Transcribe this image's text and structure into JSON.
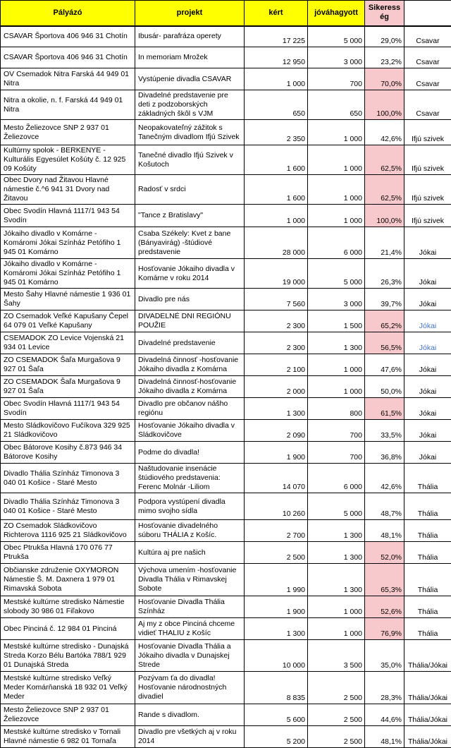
{
  "colors": {
    "header_fill": "#FFFF00",
    "highlight_fill": "#F8C9CC",
    "blue_group_text": "#4472C4",
    "grid": "#000000"
  },
  "table": {
    "headers": {
      "applicant": "Pályázó",
      "project": "projekt",
      "requested": "kért",
      "approved": "jóváhagyott",
      "success": "Sikeresség",
      "group": ""
    },
    "rows": [
      {
        "applicant": "CSAVAR Športova 406 946 31 Chotín",
        "project": "Ibusár- parafráza operety",
        "requested": "17 225",
        "approved": "5 000",
        "success": "29,0%",
        "group": "Csavar",
        "success_highlight": false,
        "group_blue": false
      },
      {
        "applicant": "CSAVAR Športova 406 946 31 Chotín",
        "project": "In memoriam Mrožek",
        "requested": "12 950",
        "approved": "3 000",
        "success": "23,2%",
        "group": "Csavar",
        "success_highlight": false,
        "group_blue": false
      },
      {
        "applicant": "OV Csemadok Nitra Farská 44 949 01 Nitra",
        "project": "Vystúpenie divadla CSAVAR",
        "requested": "1 000",
        "approved": "700",
        "success": "70,0%",
        "group": "Csavar",
        "success_highlight": true,
        "group_blue": false
      },
      {
        "applicant": "Nitra a okolie, n. f. Farská 44 949 01 Nitra",
        "project": "Divadelné predstavenie pre deti z podzoborských základných škôl s VJM",
        "requested": "650",
        "approved": "650",
        "success": "100,0%",
        "group": "Csavar",
        "success_highlight": true,
        "group_blue": false
      },
      {
        "applicant": "Mesto Želiezovce SNP 2 937 01 Želiezovce",
        "project": "Neopakovateľný zážitok s Tanečným divadlom Ifjú Szivek",
        "requested": "2 350",
        "approved": "1 000",
        "success": "42,6%",
        "group": "Ifjú szivek",
        "success_highlight": false,
        "group_blue": false
      },
      {
        "applicant": "Kultúrny spolok - BERKENYE - Kulturális Egyesúlet Košúty č. 12 925 09 Košúty",
        "project": "Tanečné divadlo Ifjú Szivek v Košutoch",
        "requested": "1 600",
        "approved": "1 000",
        "success": "62,5%",
        "group": "Ifjú szivek",
        "success_highlight": true,
        "group_blue": false
      },
      {
        "applicant": "Obec Dvory nad Žitavou Hlavné námestie č.^6 941 31 Dvory nad Žitavou",
        "project": "Radosť v srdci",
        "requested": "1 600",
        "approved": "1 000",
        "success": "62,5%",
        "group": "Ifjú szivek",
        "success_highlight": true,
        "group_blue": false
      },
      {
        "applicant": "Obec Svodín Hlavná 1117/1 943 54 Svodín",
        "project": "\"Tance z Bratislavy\"",
        "requested": "1 000",
        "approved": "1 000",
        "success": "100,0%",
        "group": "Ifjú szivek",
        "success_highlight": true,
        "group_blue": false
      },
      {
        "applicant": "Jókaiho divadlo v Komárne - Komáromi Jókai Színház Petófiho 1 945 01 Komárno",
        "project": "Csaba Székely: Kvet z bane (Bányavirág) -štúdiové predstavenie",
        "requested": "28 000",
        "approved": "6 000",
        "success": "21,4%",
        "group": "Jókai",
        "success_highlight": false,
        "group_blue": false
      },
      {
        "applicant": "Jókaiho divadlo v Komárne - Komáromi Jókai Színház Petófiho 1 945 01 Komárno",
        "project": "Hosťovanie Jókaiho divadla v Komárne v roku 2014",
        "requested": "19 000",
        "approved": "5 000",
        "success": "26,3%",
        "group": "Jókai",
        "success_highlight": false,
        "group_blue": false
      },
      {
        "applicant": "Mesto Šahy Hlavné námestie 1 936 01 Šahy",
        "project": "Divadlo pre nás",
        "requested": "7 560",
        "approved": "3 000",
        "success": "39,7%",
        "group": "Jókai",
        "success_highlight": false,
        "group_blue": false
      },
      {
        "applicant": "ZO Csemadok Veľké Kapušany Čepel 64 079 01 Veľké Kapušany",
        "project": "DIVADELNÉ DNI REGIÓNU POUŽIE",
        "requested": "2 300",
        "approved": "1 500",
        "success": "65,2%",
        "group": "Jókai",
        "success_highlight": true,
        "group_blue": true
      },
      {
        "applicant": "CSEMADOK ZO Levice Vojenská 21 934 01 Levice",
        "project": "Divadelné predstavenie",
        "requested": "2 300",
        "approved": "1 300",
        "success": "56,5%",
        "group": "Jókai",
        "success_highlight": true,
        "group_blue": true
      },
      {
        "applicant": "ZO CSEMADOK Šaľa Murgašova 9 927 01 Šaľa",
        "project": "Divadelná činnosť -hosťovanie Jókaiho divadla z Komárna",
        "requested": "2 100",
        "approved": "1 000",
        "success": "47,6%",
        "group": "Jókai",
        "success_highlight": false,
        "group_blue": false
      },
      {
        "applicant": "ZO CSEMADOK Šaľa Murgašova 9 927 01 Šaľa",
        "project": "Divadelná činnosť-hosťovanie Jókaiho divadla z Komárna",
        "requested": "2 000",
        "approved": "1 000",
        "success": "50,0%",
        "group": "Jókai",
        "success_highlight": false,
        "group_blue": false
      },
      {
        "applicant": "Obec Svodín Hlavná 1117/1 943 54 Svodín",
        "project": "Divadlo pre občanov nášho regiónu",
        "requested": "1 300",
        "approved": "800",
        "success": "61,5%",
        "group": "Jókai",
        "success_highlight": true,
        "group_blue": false
      },
      {
        "applicant": "Mesto Sládkovičovo Fučíkova 329 925 21 Sládkovičovo",
        "project": "Hosťovanie Jókaiho divadla v Sládkovičove",
        "requested": "2 090",
        "approved": "700",
        "success": "33,5%",
        "group": "Jókai",
        "success_highlight": false,
        "group_blue": false
      },
      {
        "applicant": "Obec Bátorove Kosihy č.873 946 34 Bátorove Kosihy",
        "project": "Podme do divadla!",
        "requested": "1 900",
        "approved": "700",
        "success": "36,8%",
        "group": "Jókai",
        "success_highlight": false,
        "group_blue": false
      },
      {
        "applicant": "Divadlo Thália Színház Timonova 3 040 01 Košice - Staré Mesto",
        "project": "Naštudovanie insenácie štúdiového predstavenia: Ferenc Molnár -Liliom",
        "requested": "14 070",
        "approved": "6 000",
        "success": "42,6%",
        "group": "Thália",
        "success_highlight": false,
        "group_blue": false
      },
      {
        "applicant": "Divadlo Thália Színház Timonova 3 040 01 Košice - Staré Mesto",
        "project": "Podpora vystúpení divadla mimo svojho sídla",
        "requested": "10 260",
        "approved": "5 000",
        "success": "48,7%",
        "group": "Thália",
        "success_highlight": false,
        "group_blue": false
      },
      {
        "applicant": "ZO Csemadok Sládkovičovo Richterova 1116 925 21 Sládkovičovo",
        "project": "Hosťovanie divadelného súboru THÁLIA z Košíc.",
        "requested": "2 700",
        "approved": "1 300",
        "success": "48,1%",
        "group": "Thália",
        "success_highlight": false,
        "group_blue": false
      },
      {
        "applicant": "Obec Ptrukša Hlavná 170 076 77 Ptrukša",
        "project": "Kultúra aj pre našich",
        "requested": "2 500",
        "approved": "1 300",
        "success": "52,0%",
        "group": "Thália",
        "success_highlight": true,
        "group_blue": false
      },
      {
        "applicant": "Občianske združenie OXYMORON Námestie Š. M. Daxnera 1 979 01 Rimavská Sobota",
        "project": "Výchova umením -hosťovanie Divadla Thália v Rimavskej Sobote",
        "requested": "1 990",
        "approved": "1 300",
        "success": "65,3%",
        "group": "Thália",
        "success_highlight": true,
        "group_blue": false
      },
      {
        "applicant": "Mestské kultúrne stredisko Námestie slobody 30 986 01 Fiľakovo",
        "project": "Hosťovanie Divadla Thália Színház",
        "requested": "1 900",
        "approved": "1 000",
        "success": "52,6%",
        "group": "Thália",
        "success_highlight": true,
        "group_blue": false
      },
      {
        "applicant": "Obec Pinciná č. 12 984 01 Pinciná",
        "project": "Aj my z obce Pinciná chceme vidieť THALIU z Košíc",
        "requested": "1 300",
        "approved": "1 000",
        "success": "76,9%",
        "group": "Thália",
        "success_highlight": true,
        "group_blue": false
      },
      {
        "applicant": "Mestské kultúrne stredisko - Dunajská Streda Korzo Bélu Bartóka 788/1 929 01 Dunajská Streda",
        "project": "Hosťovanie Divadla Thália a Jókaiho divadla v Dunajskej Strede",
        "requested": "10 000",
        "approved": "3 500",
        "success": "35,0%",
        "group": "Thália/Jókai",
        "success_highlight": false,
        "group_blue": false
      },
      {
        "applicant": "Mestské kultúrne stredisko Veľký Meder Komárňanská 18 932 01 Veľký Meder",
        "project": "Pozývam ťa do divadla! Hosťovanie národnostných divadiel",
        "requested": "8 835",
        "approved": "2 500",
        "success": "28,3%",
        "group": "Thália/Jókai",
        "success_highlight": false,
        "group_blue": false
      },
      {
        "applicant": "Mesto Želiezovce SNP 2 937 01 Želiezovce",
        "project": "Rande s divadlom.",
        "requested": "5 600",
        "approved": "2 500",
        "success": "44,6%",
        "group": "Thália/Jókai",
        "success_highlight": false,
        "group_blue": false
      },
      {
        "applicant": "Mestské kultúrne stredisko v Tornali Hlavné námestie 6 982 01 Tornaľa",
        "project": "Divadlo pre všetkých aj v roku 2014",
        "requested": "5 200",
        "approved": "2 500",
        "success": "48,1%",
        "group": "Thália/Jókai",
        "success_highlight": false,
        "group_blue": false
      }
    ]
  }
}
